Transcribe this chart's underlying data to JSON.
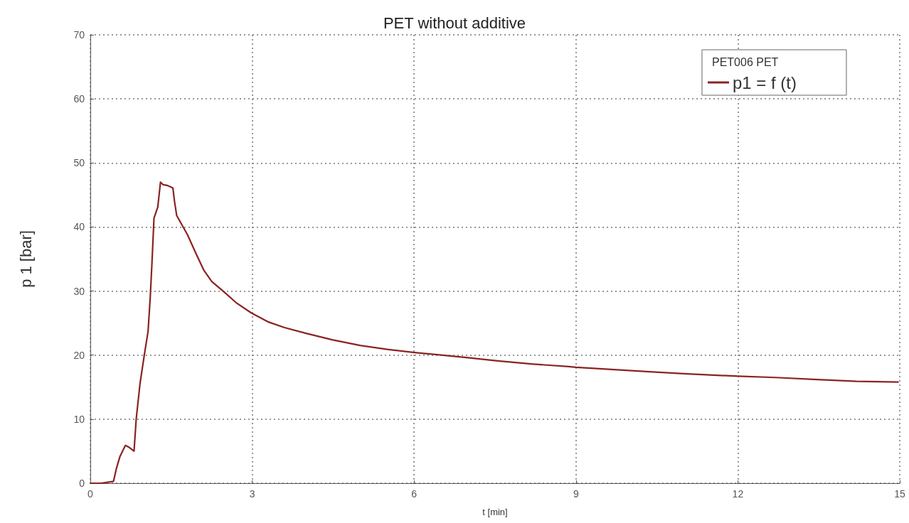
{
  "chart_data": {
    "type": "line",
    "title": "PET without additive",
    "xlabel": "t [min]",
    "ylabel": "p 1 [bar]",
    "legend_title": "PET006 PET",
    "legend": "top right",
    "grid": true,
    "marker": "none",
    "line_style": "solid",
    "xlim": [
      0,
      15
    ],
    "xticks": [
      0,
      3,
      6,
      9,
      12,
      15
    ],
    "ylim": [
      0,
      70
    ],
    "yticks": [
      0,
      10,
      20,
      30,
      40,
      50,
      60,
      70
    ],
    "series": [
      {
        "name": "p1 = f (t)",
        "color": "#8b2323",
        "x": [
          0,
          0.2,
          0.43,
          0.48,
          0.55,
          0.65,
          0.72,
          0.81,
          0.85,
          0.92,
          1.0,
          1.07,
          1.11,
          1.14,
          1.18,
          1.25,
          1.3,
          1.35,
          1.42,
          1.53,
          1.56,
          1.6,
          1.7,
          1.8,
          1.95,
          2.1,
          2.25,
          2.46,
          2.7,
          2.98,
          3.29,
          3.6,
          4.0,
          4.48,
          5.0,
          5.5,
          6.01,
          6.5,
          7.0,
          7.55,
          8.2,
          8.87,
          9.0,
          9.6,
          10.36,
          11.0,
          12.0,
          12.7,
          13.4,
          14.2,
          14.97
        ],
        "values": [
          0,
          0,
          0.3,
          2.2,
          4.2,
          5.9,
          5.6,
          5.0,
          10,
          15.5,
          20,
          23.7,
          29,
          34,
          41.4,
          43.1,
          47,
          46.6,
          46.5,
          46.1,
          44,
          41.8,
          40.3,
          38.8,
          36,
          33.3,
          31.5,
          30,
          28.2,
          26.6,
          25.2,
          24.3,
          23.4,
          22.4,
          21.5,
          20.9,
          20.4,
          20,
          19.6,
          19.1,
          18.6,
          18.2,
          18.1,
          17.8,
          17.4,
          17.1,
          16.7,
          16.5,
          16.2,
          15.9,
          15.8
        ]
      }
    ]
  }
}
